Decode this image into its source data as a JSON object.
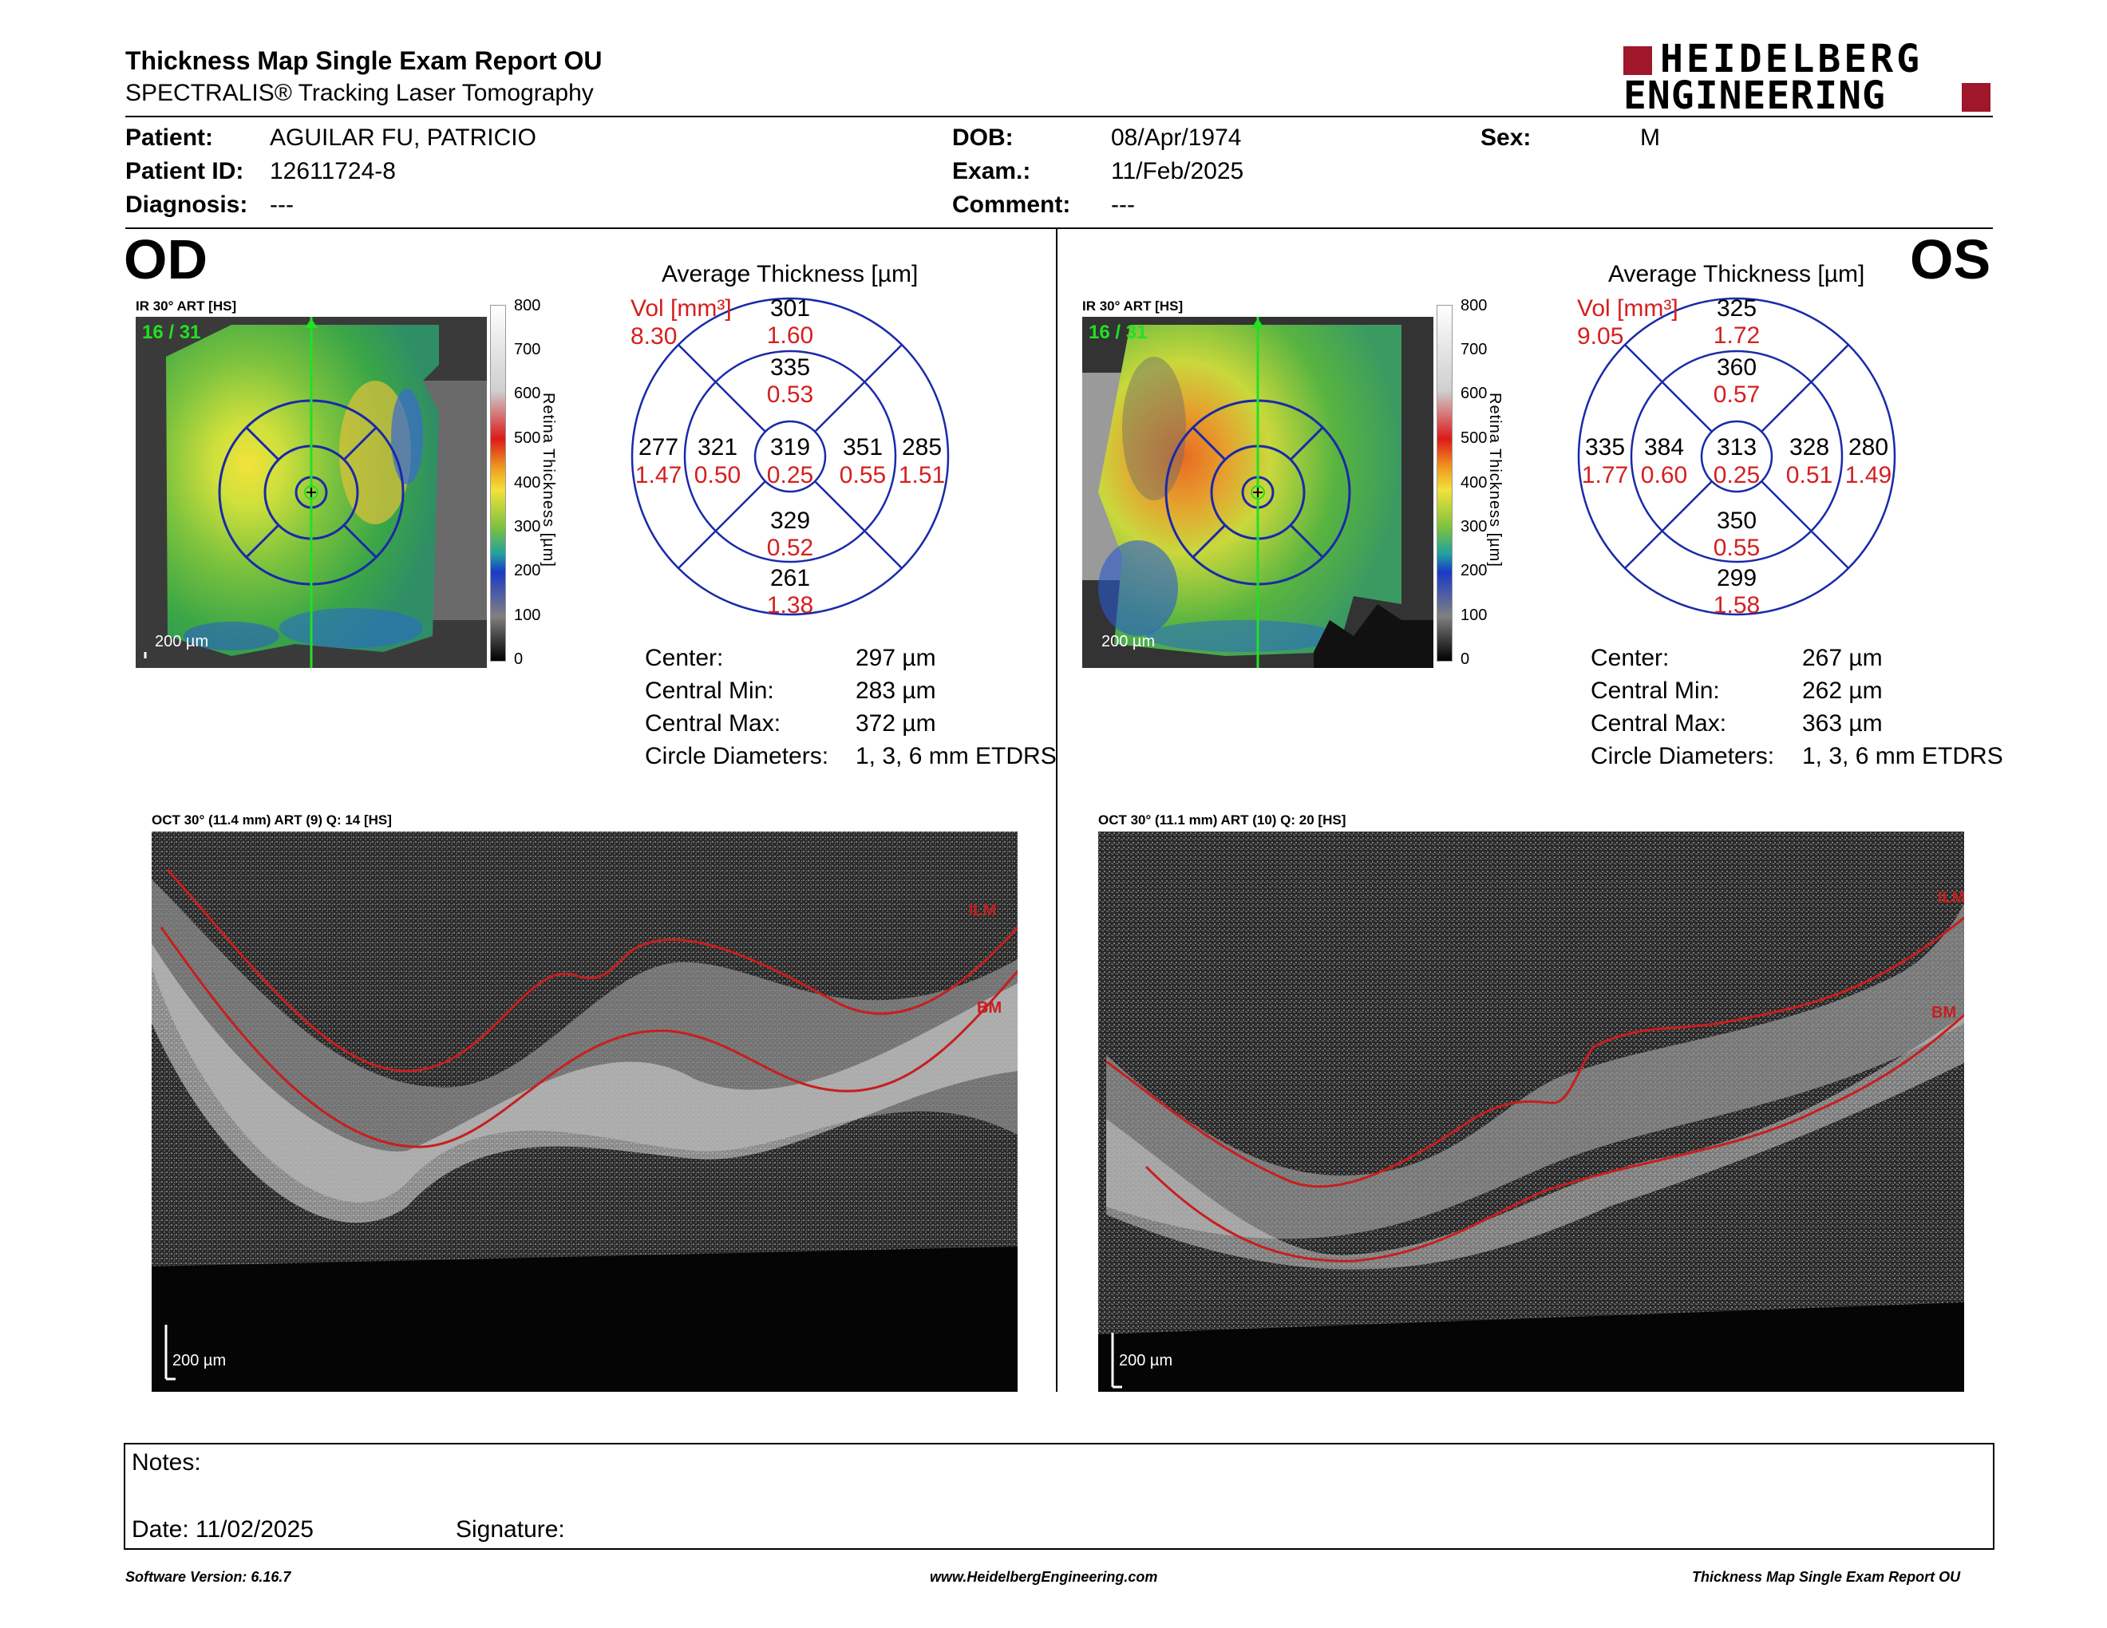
{
  "header": {
    "title": "Thickness Map Single Exam Report OU",
    "subtitle": "SPECTRALIS® Tracking Laser Tomography",
    "logo_line1": "HEIDELBERG",
    "logo_line2": "ENGINEERING"
  },
  "patient": {
    "patient_label": "Patient:",
    "patient_value": "AGUILAR FU, PATRICIO",
    "id_label": "Patient ID:",
    "id_value": "12611724-8",
    "diag_label": "Diagnosis:",
    "diag_value": "---",
    "dob_label": "DOB:",
    "dob_value": "08/Apr/1974",
    "exam_label": "Exam.:",
    "exam_value": "11/Feb/2025",
    "comment_label": "Comment:",
    "comment_value": "---",
    "sex_label": "Sex:",
    "sex_value": "M"
  },
  "od": {
    "eye": "OD",
    "ir_label": "IR 30° ART [HS]",
    "frame": "16 / 31",
    "scale": "200 µm",
    "avg_title": "Average Thickness [µm]",
    "vol_label": "Vol [mm³]",
    "vol_value": "8.30",
    "etdrs": {
      "center_t": "319",
      "center_v": "0.25",
      "inner_sup_t": "335",
      "inner_sup_v": "0.53",
      "inner_inf_t": "329",
      "inner_inf_v": "0.52",
      "inner_left_t": "321",
      "inner_left_v": "0.50",
      "inner_right_t": "351",
      "inner_right_v": "0.55",
      "outer_sup_t": "301",
      "outer_sup_v": "1.60",
      "outer_inf_t": "261",
      "outer_inf_v": "1.38",
      "outer_left_t": "277",
      "outer_left_v": "1.47",
      "outer_right_t": "285",
      "outer_right_v": "1.51"
    },
    "stats": [
      {
        "label": "Center:",
        "value": "297 µm"
      },
      {
        "label": "Central Min:",
        "value": "283 µm"
      },
      {
        "label": "Central Max:",
        "value": "372 µm"
      },
      {
        "label": "Circle Diameters:",
        "value": "1, 3, 6 mm ETDRS"
      }
    ],
    "oct_label": "OCT 30° (11.4 mm) ART (9) Q: 14 [HS]",
    "oct_scale": "200 µm",
    "ilm": "ILM",
    "bm": "BM"
  },
  "os": {
    "eye": "OS",
    "ir_label": "IR 30° ART [HS]",
    "frame": "16 / 31",
    "scale": "200 µm",
    "avg_title": "Average Thickness [µm]",
    "vol_label": "Vol [mm³]",
    "vol_value": "9.05",
    "etdrs": {
      "center_t": "313",
      "center_v": "0.25",
      "inner_sup_t": "360",
      "inner_sup_v": "0.57",
      "inner_inf_t": "350",
      "inner_inf_v": "0.55",
      "inner_left_t": "384",
      "inner_left_v": "0.60",
      "inner_right_t": "328",
      "inner_right_v": "0.51",
      "outer_sup_t": "325",
      "outer_sup_v": "1.72",
      "outer_inf_t": "299",
      "outer_inf_v": "1.58",
      "outer_left_t": "335",
      "outer_left_v": "1.77",
      "outer_right_t": "280",
      "outer_right_v": "1.49"
    },
    "stats": [
      {
        "label": "Center:",
        "value": "267 µm"
      },
      {
        "label": "Central Min:",
        "value": "262 µm"
      },
      {
        "label": "Central Max:",
        "value": "363 µm"
      },
      {
        "label": "Circle Diameters:",
        "value": "1, 3, 6 mm ETDRS"
      }
    ],
    "oct_label": "OCT 30° (11.1 mm) ART (10) Q: 20 [HS]",
    "oct_scale": "200 µm",
    "ilm": "ILM",
    "bm": "BM"
  },
  "colorbar": {
    "ticks": [
      "800",
      "700",
      "600",
      "500",
      "400",
      "300",
      "200",
      "100",
      "0"
    ],
    "title": "Retina Thickness [µm]"
  },
  "notes": {
    "notes_label": "Notes:",
    "date_label": "Date: 11/02/2025",
    "signature_label": "Signature:"
  },
  "footer": {
    "software": "Software Version: 6.16.7",
    "website": "www.HeidelbergEngineering.com",
    "report": "Thickness Map Single Exam Report OU"
  },
  "colors": {
    "red_value": "#d42020",
    "etdrs_blue": "#1a2aa8",
    "logo_red": "#a0162a"
  }
}
